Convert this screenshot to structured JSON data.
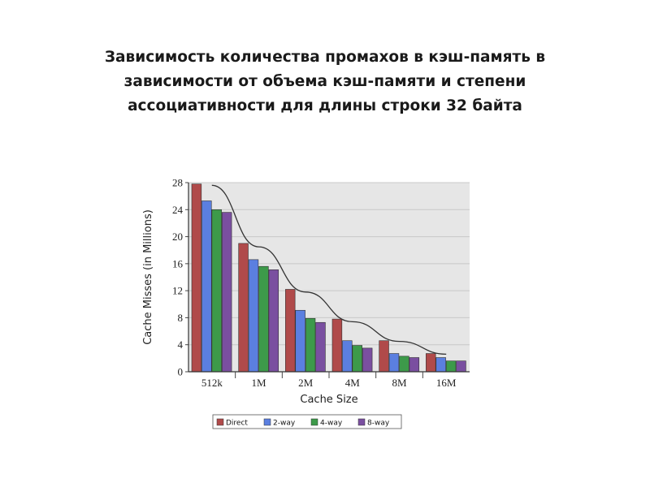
{
  "slide": {
    "title": "Зависимость количества промахов в кэш-память в зависимости от объема кэш-памяти и степени ассоциативности для длины строки 32 байта"
  },
  "chart_data": {
    "type": "bar",
    "categories": [
      "512k",
      "1M",
      "2M",
      "4M",
      "8M",
      "16M"
    ],
    "series": [
      {
        "name": "Direct",
        "color": "#b04a4a",
        "values": [
          27.8,
          19.0,
          12.2,
          7.8,
          4.6,
          2.7
        ]
      },
      {
        "name": "2-way",
        "color": "#5b7fe0",
        "values": [
          25.3,
          16.6,
          9.1,
          4.6,
          2.7,
          2.1
        ]
      },
      {
        "name": "4-way",
        "color": "#3d9a4a",
        "values": [
          24.0,
          15.6,
          7.9,
          3.9,
          2.3,
          1.6
        ]
      },
      {
        "name": "8-way",
        "color": "#7a4fa0",
        "values": [
          23.6,
          15.1,
          7.3,
          3.5,
          2.1,
          1.6
        ]
      }
    ],
    "trend_line": {
      "values": [
        27.6,
        18.5,
        11.8,
        7.4,
        4.5,
        2.6
      ]
    },
    "xlabel": "Cache Size",
    "ylabel": "Cache Misses (in Millions)",
    "ylim": [
      0,
      28
    ],
    "yticks": [
      0,
      4,
      8,
      12,
      16,
      20,
      24,
      28
    ],
    "grid": true,
    "legend_position": "bottom",
    "plot_background": "#e6e6e6",
    "grid_color": "#c8c8c8"
  }
}
